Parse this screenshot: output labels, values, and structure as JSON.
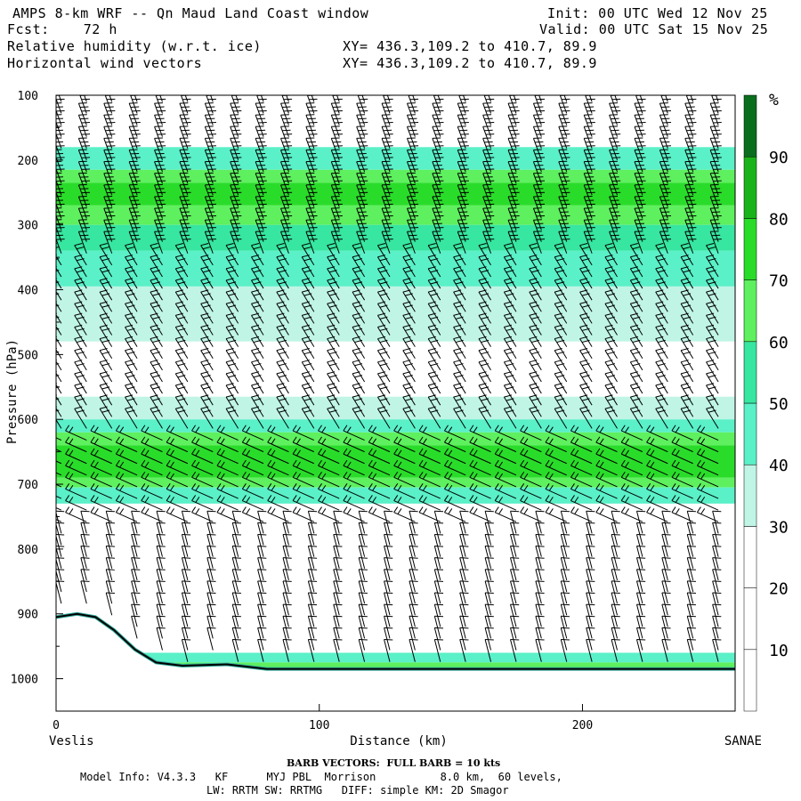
{
  "header": {
    "title": "AMPS 8-km WRF -- Qn Maud Land Coast window",
    "fcst": "Fcst:    72 h",
    "init": "Init: 00 UTC Wed 12 Nov 25",
    "valid": "Valid: 00 UTC Sat 15 Nov 25",
    "field1": "Relative humidity (w.r.t. ice)",
    "field2": "Horizontal wind vectors",
    "xy1": "XY= 436.3,109.2 to 410.7, 89.9",
    "xy2": "XY= 436.3,109.2 to 410.7, 89.9"
  },
  "footer": {
    "barb": "BARB VECTORS:  FULL BARB = 10 kts",
    "model1": "Model Info: V4.3.3   KF      MYJ PBL  Morrison          8.0 km,  60 levels,",
    "model2": "LW: RRTM SW: RRTMG   DIFF: simple KM: 2D Smagor"
  },
  "colors": {
    "c30": "#ffffff",
    "c40": "#c0f5e6",
    "c50": "#5af0c8",
    "c60": "#37e6a0",
    "c70": "#5ef05e",
    "c80": "#2adc2a",
    "c90": "#1ab41a",
    "c100": "#0a6e1e",
    "terrain": "#000000"
  },
  "chart_data": {
    "type": "heatmap",
    "title": "Relative humidity (w.r.t. ice) with horizontal wind vectors",
    "xlabel": "Distance (km)",
    "ylabel": "Pressure (hPa)",
    "xlim": [
      0,
      258
    ],
    "ylim": [
      1050,
      100
    ],
    "x_ticks": [
      0,
      100,
      200
    ],
    "y_ticks": [
      100,
      200,
      300,
      400,
      500,
      600,
      700,
      800,
      900,
      1000
    ],
    "x_start_label": "Veslis",
    "x_end_label": "SANAE",
    "colorbar_unit": "%",
    "colorbar_levels": [
      0,
      10,
      20,
      30,
      40,
      50,
      60,
      70,
      80,
      90,
      100
    ],
    "colorbar_tick_labels": [
      10,
      20,
      30,
      40,
      50,
      60,
      70,
      80,
      90
    ],
    "rh_bands": [
      {
        "p_top": 100,
        "p_bottom": 180,
        "rh": 25
      },
      {
        "p_top": 180,
        "p_bottom": 215,
        "rh": 45
      },
      {
        "p_top": 215,
        "p_bottom": 235,
        "rh": 65
      },
      {
        "p_top": 235,
        "p_bottom": 270,
        "rh": 75
      },
      {
        "p_top": 270,
        "p_bottom": 300,
        "rh": 65
      },
      {
        "p_top": 300,
        "p_bottom": 340,
        "rh": 55
      },
      {
        "p_top": 340,
        "p_bottom": 395,
        "rh": 45
      },
      {
        "p_top": 395,
        "p_bottom": 480,
        "rh": 35
      },
      {
        "p_top": 480,
        "p_bottom": 565,
        "rh": 28
      },
      {
        "p_top": 565,
        "p_bottom": 600,
        "rh": 35
      },
      {
        "p_top": 600,
        "p_bottom": 620,
        "rh": 45
      },
      {
        "p_top": 620,
        "p_bottom": 640,
        "rh": 65
      },
      {
        "p_top": 640,
        "p_bottom": 690,
        "rh": 78
      },
      {
        "p_top": 690,
        "p_bottom": 705,
        "rh": 65
      },
      {
        "p_top": 705,
        "p_bottom": 730,
        "rh": 45
      },
      {
        "p_top": 730,
        "p_bottom": 960,
        "rh": 25
      },
      {
        "p_top": 960,
        "p_bottom": 975,
        "rh": 40
      },
      {
        "p_top": 975,
        "p_bottom": 985,
        "rh": 65
      }
    ],
    "terrain_surface": [
      {
        "x": 0,
        "p": 905
      },
      {
        "x": 8,
        "p": 900
      },
      {
        "x": 15,
        "p": 905
      },
      {
        "x": 22,
        "p": 925
      },
      {
        "x": 30,
        "p": 955
      },
      {
        "x": 38,
        "p": 975
      },
      {
        "x": 48,
        "p": 980
      },
      {
        "x": 65,
        "p": 978
      },
      {
        "x": 80,
        "p": 985
      },
      {
        "x": 100,
        "p": 985
      },
      {
        "x": 258,
        "p": 985
      }
    ]
  }
}
